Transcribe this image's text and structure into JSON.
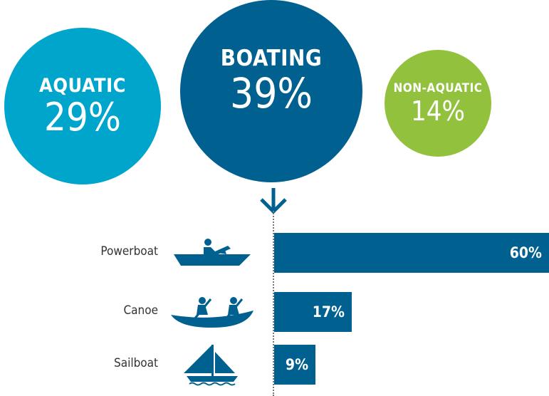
{
  "colors": {
    "aquatic": "#00a5cc",
    "boating": "#00608f",
    "non_aquatic": "#92c13e",
    "bar": "#00608f",
    "text": "#333333"
  },
  "circles": {
    "aquatic": {
      "label": "AQUATIC",
      "value": "29%"
    },
    "boating": {
      "label": "BOATING",
      "value": "39%"
    },
    "non_aquatic": {
      "label": "NON-AQUATIC",
      "value": "14%"
    }
  },
  "chart_data": {
    "type": "bar",
    "orientation": "horizontal",
    "categories": [
      "Powerboat",
      "Canoe",
      "Sailboat"
    ],
    "values": [
      60,
      17,
      9
    ],
    "value_labels": [
      "60%",
      "17%",
      "9%"
    ],
    "icons": [
      "powerboat-icon",
      "canoe-icon",
      "sailboat-icon"
    ],
    "xlim": [
      0,
      60
    ],
    "grid": false,
    "legend": "none"
  }
}
